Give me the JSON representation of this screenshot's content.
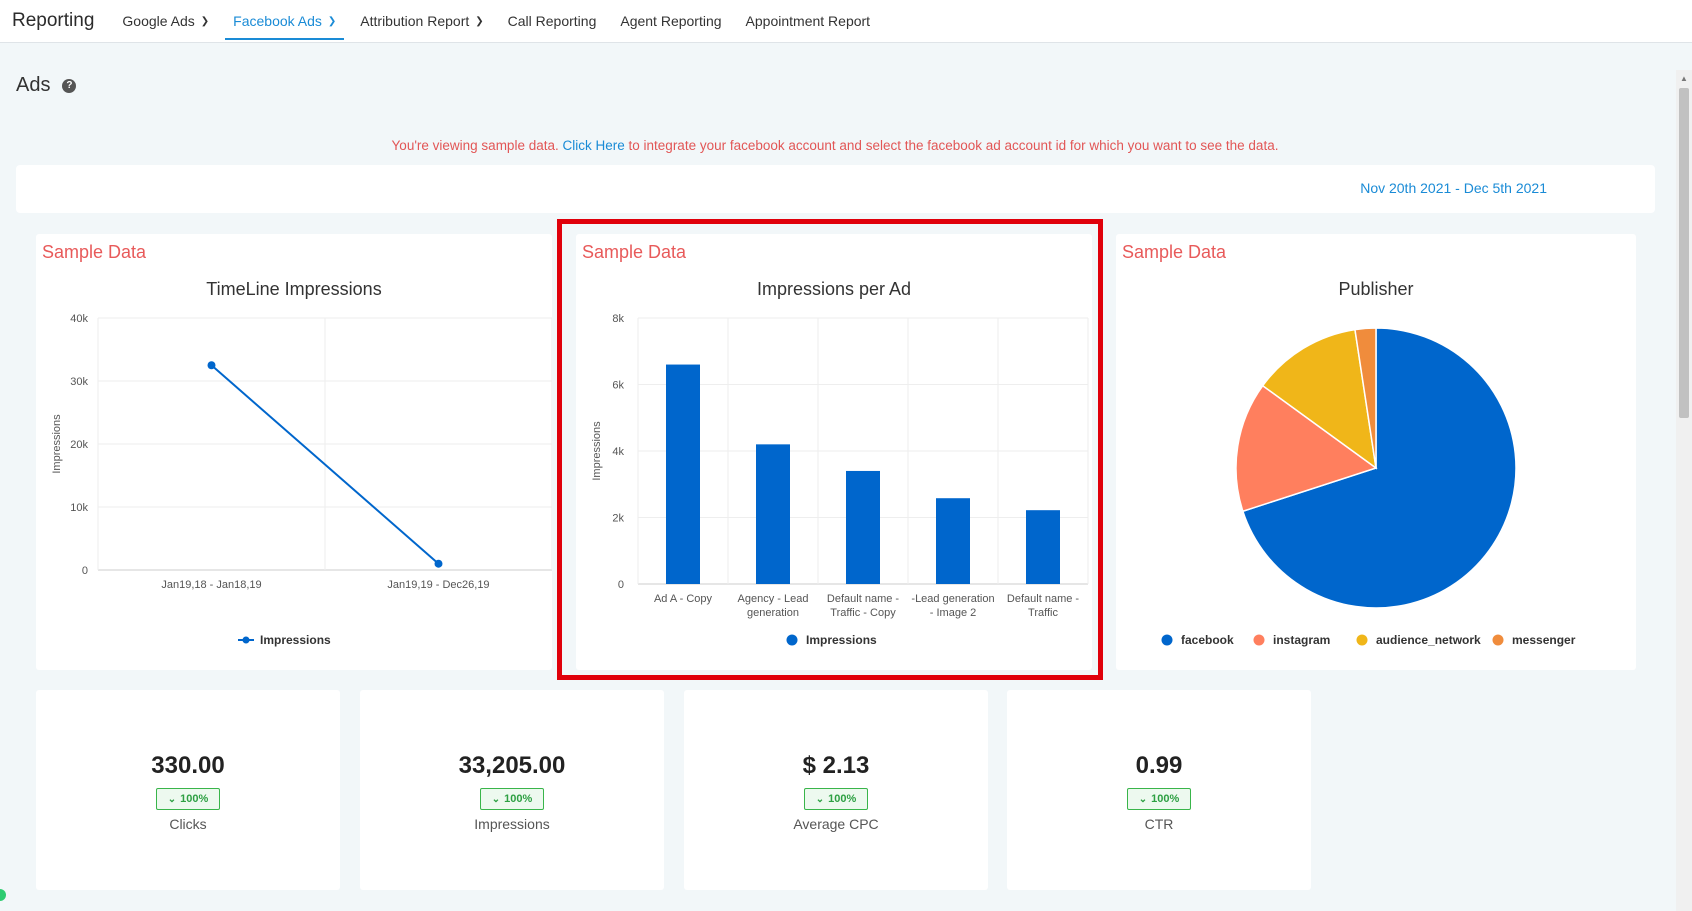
{
  "nav": {
    "brand": "Reporting",
    "items": [
      {
        "label": "Google Ads",
        "dropdown": true,
        "active": false
      },
      {
        "label": "Facebook Ads",
        "dropdown": true,
        "active": true
      },
      {
        "label": "Attribution Report",
        "dropdown": true,
        "active": false
      },
      {
        "label": "Call Reporting",
        "dropdown": false,
        "active": false
      },
      {
        "label": "Agent Reporting",
        "dropdown": false,
        "active": false
      },
      {
        "label": "Appointment Report",
        "dropdown": false,
        "active": false
      }
    ]
  },
  "page": {
    "title": "Ads",
    "help_icon": "question-circle-icon"
  },
  "notice": {
    "prefix": "You're viewing sample data.",
    "link": "Click Here",
    "suffix": "to integrate your facebook account and select the facebook ad account id for which you want to see the data."
  },
  "date_range": "Nov 20th 2021 - Dec 5th 2021",
  "colors": {
    "primary": "#0066cc",
    "accent": "#1a8bd6",
    "sample": "#e85a5a",
    "highlight": "#e0000b"
  },
  "chart_data": [
    {
      "type": "line",
      "sample_label": "Sample Data",
      "title": "TimeLine Impressions",
      "ylabel": "Impressions",
      "categories": [
        "Jan19,18 - Jan18,19",
        "Jan19,19 - Dec26,19"
      ],
      "y_ticks": [
        "0",
        "10k",
        "20k",
        "30k",
        "40k"
      ],
      "ylim": [
        0,
        40000
      ],
      "series": [
        {
          "name": "Impressions",
          "values": [
            32500,
            1000
          ],
          "color": "#0066cc"
        }
      ],
      "legend": "bottom",
      "grid": true
    },
    {
      "type": "bar",
      "sample_label": "Sample Data",
      "title": "Impressions per Ad",
      "ylabel": "Impressions",
      "categories": [
        [
          "Ad A - Copy"
        ],
        [
          "Agency - Lead",
          "generation"
        ],
        [
          "Default name -",
          "Traffic - Copy"
        ],
        [
          "-Lead generation",
          "- Image 2"
        ],
        [
          "Default name -",
          "Traffic"
        ]
      ],
      "y_ticks": [
        "0",
        "2k",
        "4k",
        "6k",
        "8k"
      ],
      "ylim": [
        0,
        8000
      ],
      "series": [
        {
          "name": "Impressions",
          "values": [
            6600,
            4200,
            3400,
            2580,
            2220
          ],
          "color": "#0066cc"
        }
      ],
      "legend": "bottom",
      "grid": true
    },
    {
      "type": "pie",
      "sample_label": "Sample Data",
      "title": "Publisher",
      "slices": [
        {
          "name": "facebook",
          "value": 70,
          "color": "#0066cc"
        },
        {
          "name": "instagram",
          "value": 15,
          "color": "#ff7f5e"
        },
        {
          "name": "audience_network",
          "value": 12.6,
          "color": "#f0b619"
        },
        {
          "name": "messenger",
          "value": 2.4,
          "color": "#f08c3c"
        }
      ],
      "legend": "bottom"
    }
  ],
  "kpis": [
    {
      "value": "330.00",
      "change": "100%",
      "label": "Clicks"
    },
    {
      "value": "33,205.00",
      "change": "100%",
      "label": "Impressions"
    },
    {
      "value": "$ 2.13",
      "change": "100%",
      "label": "Average CPC"
    },
    {
      "value": "0.99",
      "change": "100%",
      "label": "CTR"
    }
  ]
}
